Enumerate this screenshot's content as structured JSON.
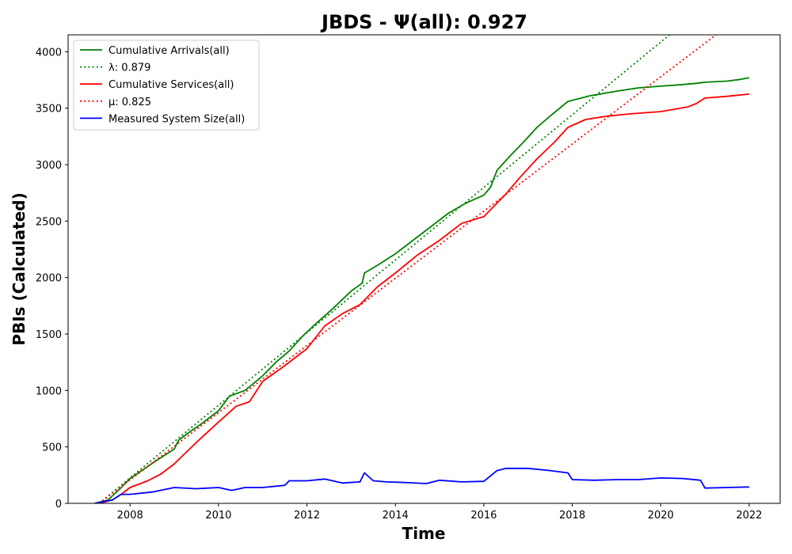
{
  "chart_data": {
    "type": "line",
    "title": "JBDS -  Ψ(all): 0.927",
    "xlabel": "Time",
    "ylabel": "PBIs (Calculated)",
    "xlim": [
      2006.6,
      2022.7
    ],
    "ylim": [
      0,
      4150
    ],
    "x_ticks": [
      2008,
      2010,
      2012,
      2014,
      2016,
      2018,
      2020,
      2022
    ],
    "y_ticks": [
      0,
      500,
      1000,
      1500,
      2000,
      2500,
      3000,
      3500,
      4000
    ],
    "grid": false,
    "legend_position": "top-left",
    "series": [
      {
        "name": "Cumulative Arrivals(all)",
        "color": "#008000",
        "style": "solid",
        "x": [
          2007.2,
          2007.5,
          2007.75,
          2008.0,
          2008.3,
          2008.6,
          2009.0,
          2009.1,
          2009.3,
          2009.6,
          2010.0,
          2010.25,
          2010.6,
          2011.0,
          2011.3,
          2011.6,
          2011.9,
          2012.2,
          2012.6,
          2013.0,
          2013.25,
          2013.3,
          2013.6,
          2014.0,
          2014.4,
          2014.8,
          2015.2,
          2015.6,
          2016.0,
          2016.15,
          2016.3,
          2016.6,
          2016.9,
          2017.2,
          2017.5,
          2017.9,
          2018.4,
          2019.0,
          2019.5,
          2020.0,
          2020.5,
          2020.8,
          2021.0,
          2021.5,
          2021.8,
          2022.0
        ],
        "values": [
          0,
          30,
          120,
          220,
          300,
          380,
          480,
          560,
          620,
          700,
          820,
          950,
          1000,
          1130,
          1250,
          1350,
          1480,
          1590,
          1730,
          1880,
          1950,
          2040,
          2110,
          2210,
          2330,
          2450,
          2570,
          2660,
          2730,
          2800,
          2950,
          3080,
          3200,
          3330,
          3430,
          3560,
          3610,
          3650,
          3680,
          3695,
          3710,
          3720,
          3730,
          3740,
          3755,
          3770
        ]
      },
      {
        "name": "λ: 0.879",
        "color": "#008000",
        "style": "dotted",
        "x": [
          2007.3,
          2020.2
        ],
        "values": [
          0,
          4150
        ]
      },
      {
        "name": "Cumulative Services(all)",
        "color": "#ff0000",
        "style": "solid",
        "x": [
          2007.3,
          2007.6,
          2007.8,
          2008.0,
          2008.4,
          2008.7,
          2009.0,
          2009.5,
          2010.0,
          2010.4,
          2010.7,
          2011.0,
          2011.5,
          2012.0,
          2012.4,
          2012.8,
          2013.2,
          2013.6,
          2014.0,
          2014.5,
          2015.0,
          2015.5,
          2016.0,
          2016.2,
          2016.5,
          2016.8,
          2017.2,
          2017.6,
          2017.9,
          2018.3,
          2018.8,
          2019.3,
          2020.0,
          2020.6,
          2020.8,
          2021.0,
          2021.5,
          2022.0
        ],
        "values": [
          0,
          30,
          80,
          140,
          200,
          260,
          350,
          540,
          720,
          860,
          900,
          1080,
          1220,
          1370,
          1570,
          1680,
          1760,
          1920,
          2040,
          2200,
          2330,
          2480,
          2540,
          2620,
          2740,
          2880,
          3050,
          3200,
          3330,
          3400,
          3430,
          3450,
          3470,
          3510,
          3540,
          3590,
          3605,
          3625
        ]
      },
      {
        "name": "μ: 0.825",
        "color": "#ff0000",
        "style": "dotted",
        "x": [
          2007.3,
          2021.25
        ],
        "values": [
          0,
          4150
        ]
      },
      {
        "name": "Measured System Size(all)",
        "color": "#0000ff",
        "style": "solid",
        "x": [
          2007.2,
          2007.6,
          2007.8,
          2008.0,
          2008.5,
          2009.0,
          2009.5,
          2010.0,
          2010.3,
          2010.6,
          2011.0,
          2011.5,
          2011.6,
          2012.0,
          2012.4,
          2012.8,
          2013.2,
          2013.3,
          2013.5,
          2013.8,
          2014.2,
          2014.7,
          2015.0,
          2015.5,
          2016.0,
          2016.3,
          2016.5,
          2017.0,
          2017.5,
          2017.9,
          2018.0,
          2018.5,
          2019.0,
          2019.5,
          2020.0,
          2020.5,
          2020.9,
          2021.0,
          2021.5,
          2022.0
        ],
        "values": [
          0,
          30,
          80,
          80,
          100,
          140,
          130,
          140,
          115,
          140,
          140,
          160,
          200,
          200,
          215,
          180,
          190,
          270,
          200,
          190,
          185,
          175,
          205,
          190,
          195,
          290,
          310,
          310,
          290,
          270,
          210,
          205,
          210,
          210,
          225,
          220,
          205,
          135,
          140,
          145
        ]
      }
    ]
  }
}
